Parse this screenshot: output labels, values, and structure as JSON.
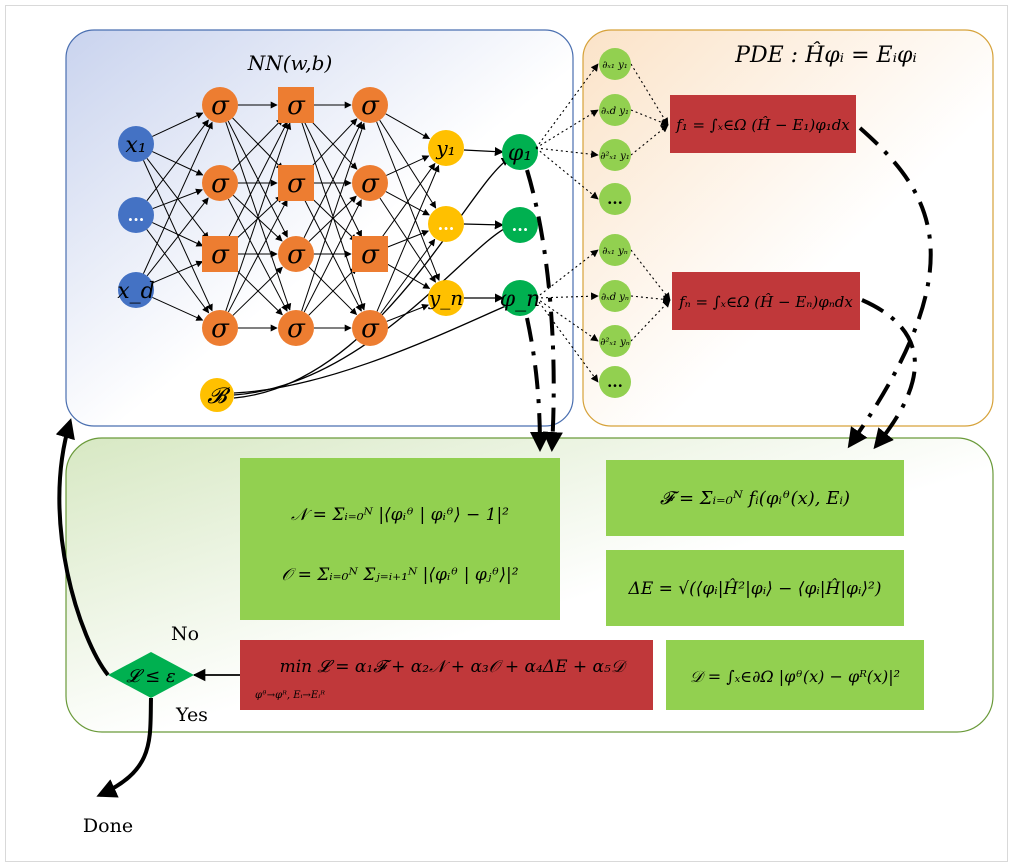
{
  "nn_label": "NN(w,b)",
  "pde_label": "PDE : Ĥφᵢ = Eᵢφᵢ",
  "input_nodes": [
    "x₁",
    "...",
    "x_d"
  ],
  "sigma_label": "σ",
  "bias_label": "𝓑",
  "output_nodes": [
    "y₁",
    "...",
    "y_n"
  ],
  "phi_nodes": [
    "φ₁",
    "...",
    "φ_n"
  ],
  "derivs_1": [
    "∂ₓ₁ y₁",
    "∂ₓd y₁",
    "∂²ₓ₁ y₁",
    "..."
  ],
  "derivs_n": [
    "∂ₓ₁ yₙ",
    "∂ₓd yₙ",
    "∂²ₓ₁ yₙ",
    "..."
  ],
  "f1_formula": "f₁ = ∫ₓ∈Ω (Ĥ − E₁)φ₁dx",
  "fn_formula": "fₙ = ∫ₓ∈Ω (Ĥ − Eₙ)φₙdx",
  "N_formula": "𝒩 = Σᵢ₌₀ᴺ |⟨φᵢᶿ | φᵢᶿ⟩ − 1|²",
  "O_formula": "𝒪 = Σᵢ₌₀ᴺ Σⱼ₌ᵢ₊₁ᴺ |⟨φᵢᶿ | φⱼᶿ⟩|²",
  "F_formula": "𝓕 = Σᵢ₌₀ᴺ fᵢ(φᵢᶿ(x), Eᵢ)",
  "dE_formula": "ΔE = √(⟨φᵢ|Ĥ²|φᵢ⟩ − ⟨φᵢ|Ĥ|φᵢ⟩²)",
  "L_formula": "min 𝓛 = α₁𝓕 + α₂𝒩 + α₃𝒪 + α₄ΔE + α₅𝒟",
  "L_sub": "φᶿ→φᴿ, Eᵢ→Eᵢᴿ",
  "D_formula": "𝒟 = ∫ₓ∈∂Ω |φᶿ(x) − φᴿ(x)|²",
  "decision_label": "𝓛 ≤ ε",
  "no_label": "No",
  "yes_label": "Yes",
  "done_label": "Done",
  "colors": {
    "input": "#4472c4",
    "sigma": "#ed7d31",
    "output": "#ffc000",
    "phi": "#00b050",
    "deriv": "#92d050",
    "red_box": "#c0383a",
    "green_box": "#92d050"
  }
}
